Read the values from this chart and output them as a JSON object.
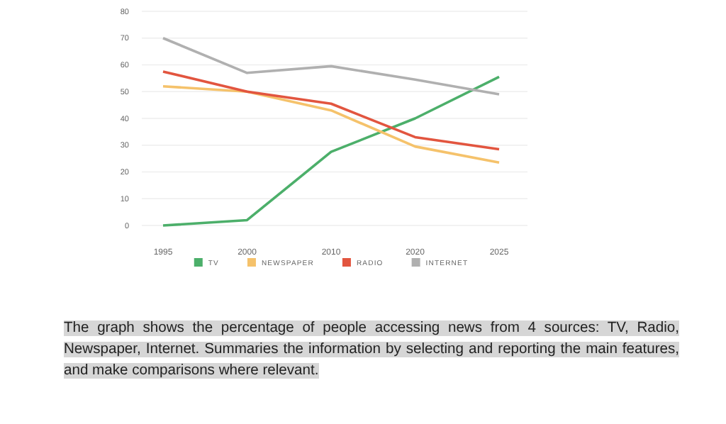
{
  "chart_data": {
    "type": "line",
    "categories": [
      "1995",
      "2000",
      "2010",
      "2020",
      "2025"
    ],
    "series": [
      {
        "name": "TV",
        "color": "#4caf6a",
        "values": [
          0,
          2,
          27.5,
          40,
          55.5
        ]
      },
      {
        "name": "NEWSPAPER",
        "color": "#f5c26b",
        "values": [
          52,
          50,
          43,
          29.5,
          23.5
        ]
      },
      {
        "name": "RADIO",
        "color": "#e2553f",
        "values": [
          57.5,
          50,
          45.5,
          33,
          28.5
        ]
      },
      {
        "name": "INTERNET",
        "color": "#b0b0b0",
        "values": [
          70,
          57,
          59.5,
          54.5,
          49
        ]
      }
    ],
    "ylim": [
      0,
      80
    ],
    "yticks": [
      0,
      10,
      20,
      30,
      40,
      50,
      60,
      70,
      80
    ],
    "grid": "y",
    "legend": "bottom",
    "marker": "none",
    "line_style": "solid",
    "annotations": [
      "The graph shows the percentage of people accessing news from 4 sources: TV, Radio, Newspaper, Internet. Summaries the information by selecting and reporting the main features, and make comparisons where relevant."
    ]
  }
}
